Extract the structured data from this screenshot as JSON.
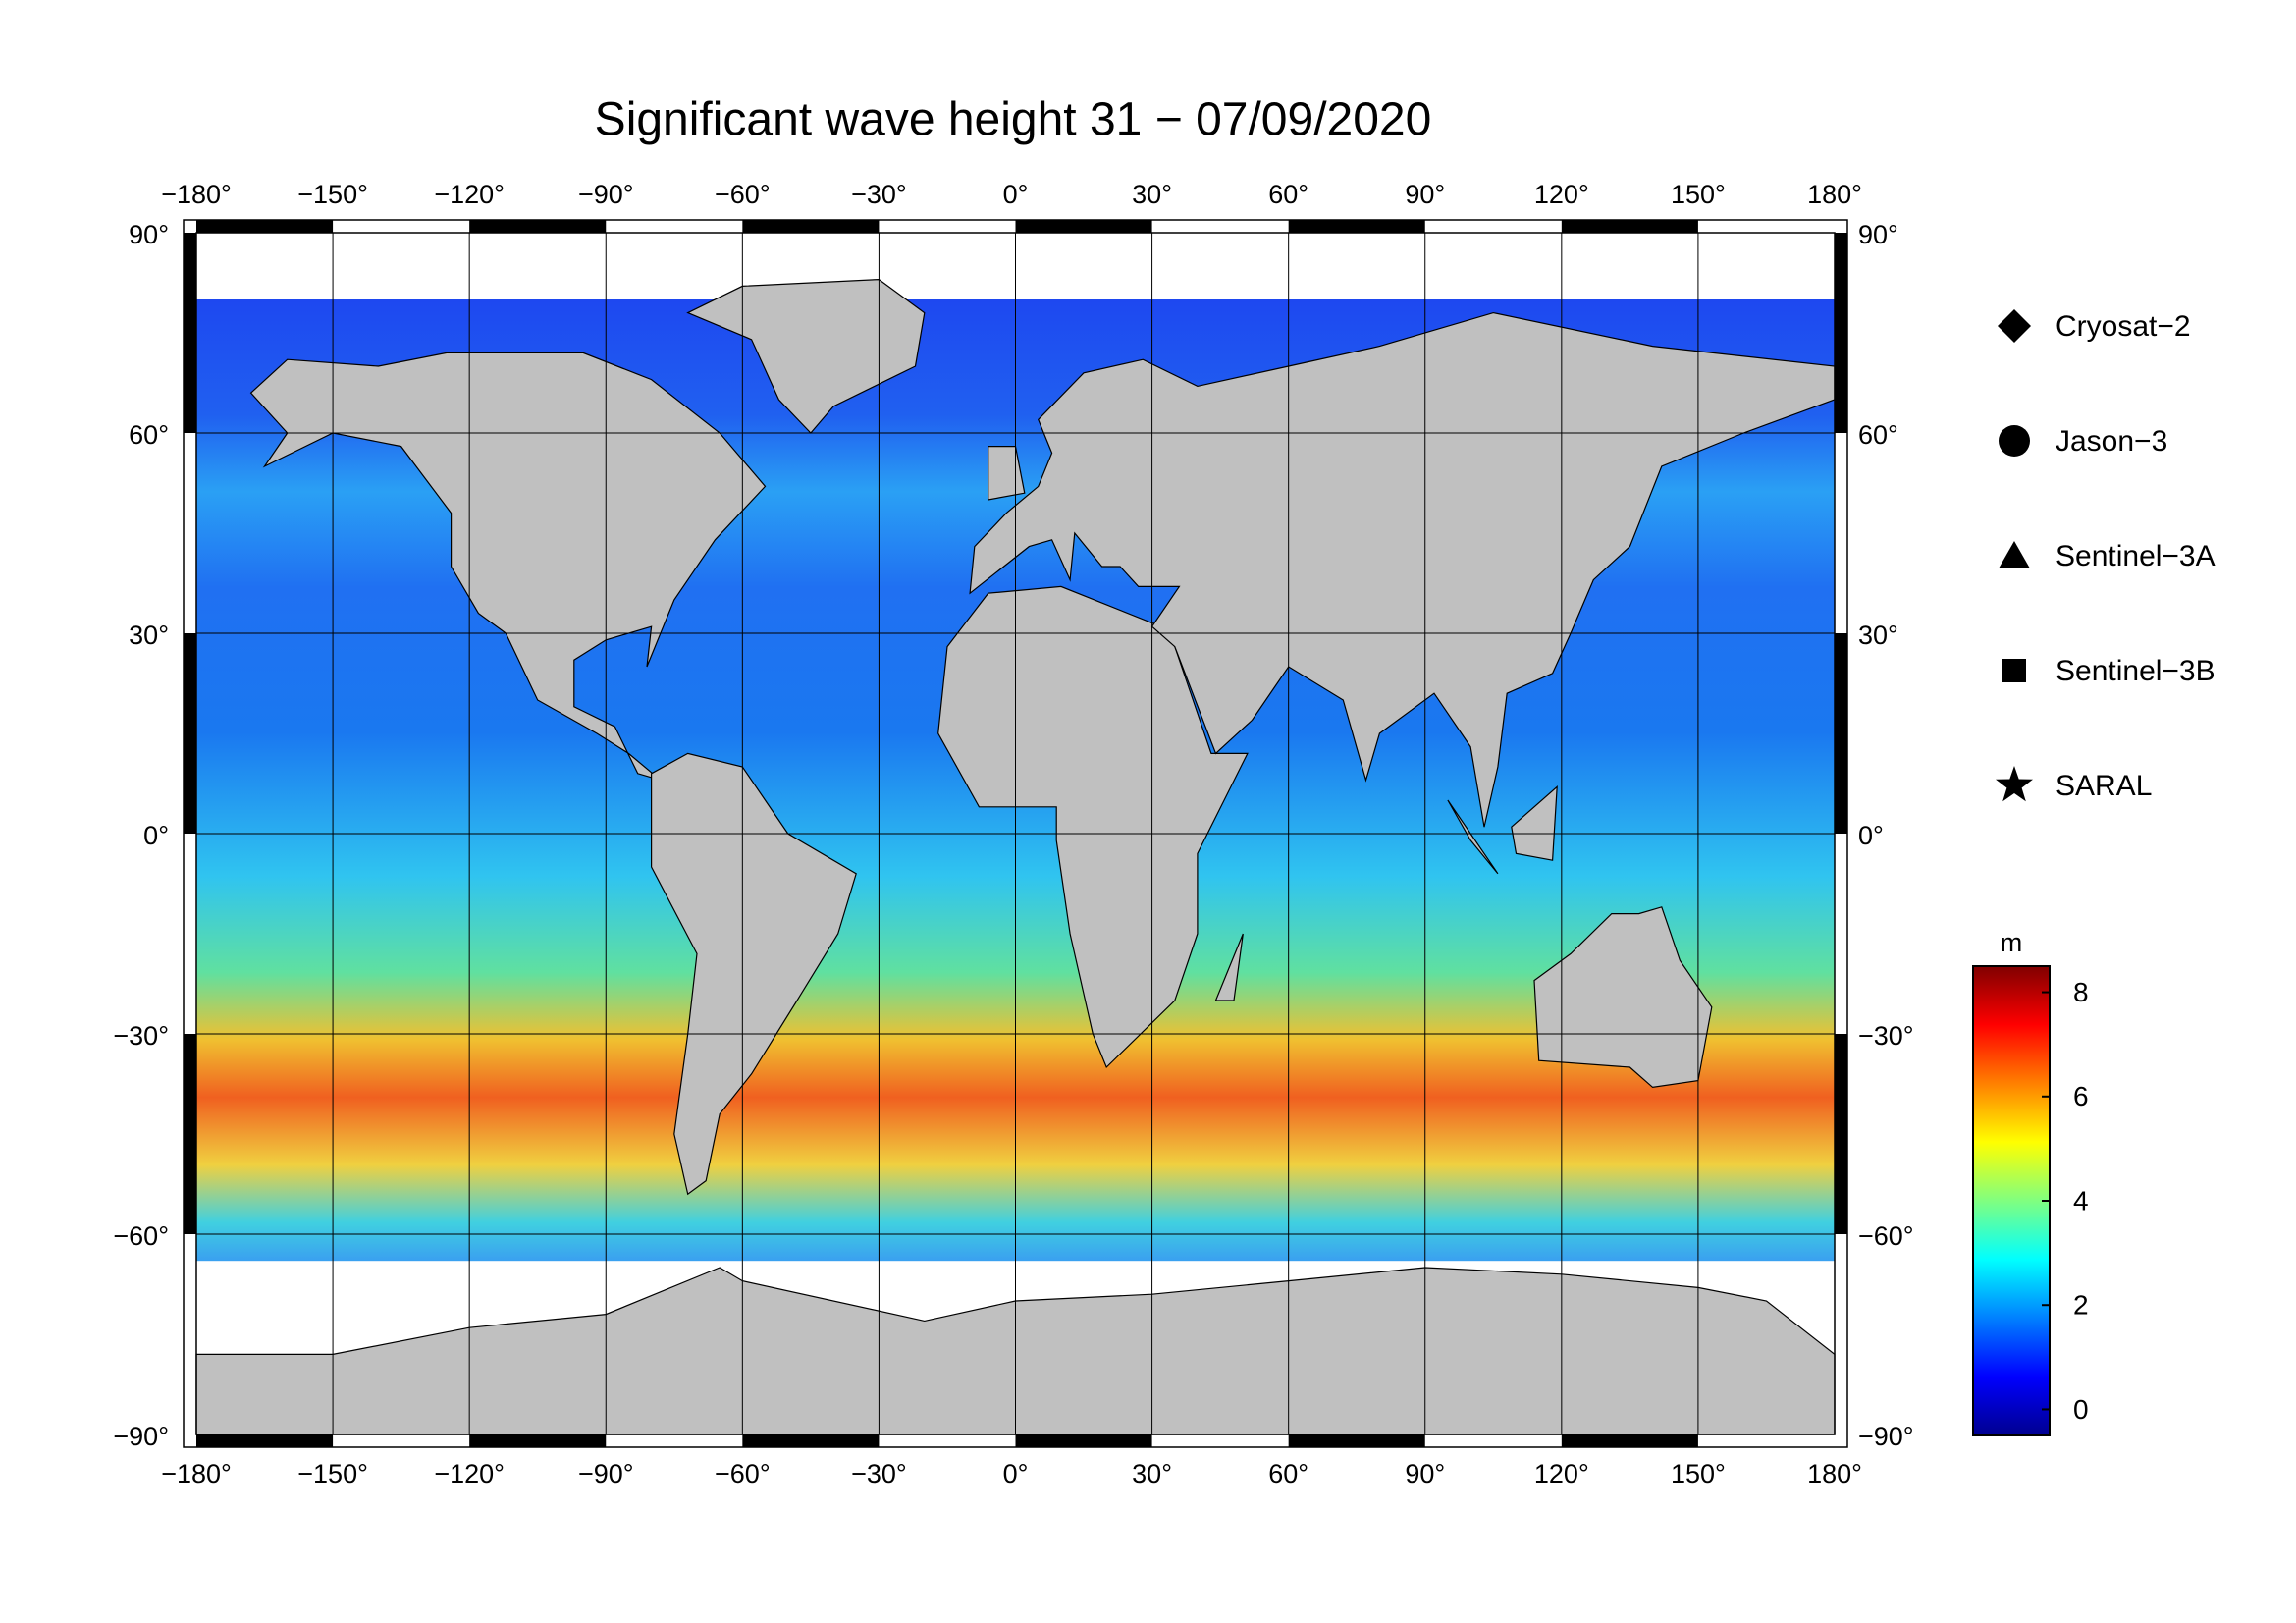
{
  "chart_data": {
    "type": "map",
    "title": "Significant wave height 31 − 07/09/2020",
    "xlim": [
      -180,
      180
    ],
    "ylim": [
      -90,
      90
    ],
    "xticks": [
      {
        "value": -180,
        "label": "−180°"
      },
      {
        "value": -150,
        "label": "−150°"
      },
      {
        "value": -120,
        "label": "−120°"
      },
      {
        "value": -90,
        "label": "−90°"
      },
      {
        "value": -60,
        "label": "−60°"
      },
      {
        "value": -30,
        "label": "−30°"
      },
      {
        "value": 0,
        "label": "0°"
      },
      {
        "value": 30,
        "label": "30°"
      },
      {
        "value": 60,
        "label": "60°"
      },
      {
        "value": 90,
        "label": "90°"
      },
      {
        "value": 120,
        "label": "120°"
      },
      {
        "value": 150,
        "label": "150°"
      },
      {
        "value": 180,
        "label": "180°"
      }
    ],
    "yticks": [
      {
        "value": 90,
        "label": "90°"
      },
      {
        "value": 60,
        "label": "60°"
      },
      {
        "value": 30,
        "label": "30°"
      },
      {
        "value": 0,
        "label": "0°"
      },
      {
        "value": -30,
        "label": "−30°"
      },
      {
        "value": -60,
        "label": "−60°"
      },
      {
        "value": -90,
        "label": "−90°"
      }
    ],
    "grid": true,
    "series": [
      {
        "name": "Cryosat−2",
        "marker": "diamond"
      },
      {
        "name": "Jason−3",
        "marker": "circle"
      },
      {
        "name": "Sentinel−3A",
        "marker": "triangle"
      },
      {
        "name": "Sentinel−3B",
        "marker": "square"
      },
      {
        "name": "SARAL",
        "marker": "star"
      }
    ],
    "colorbar": {
      "label": "m",
      "lim": [
        -0.5,
        8.5
      ],
      "ticks": [
        0,
        2,
        4,
        6,
        8
      ],
      "colors": [
        "#00008f",
        "#0000ff",
        "#0080ff",
        "#00ffff",
        "#80ff80",
        "#ffff00",
        "#ff8000",
        "#ff0000",
        "#800000"
      ]
    }
  }
}
